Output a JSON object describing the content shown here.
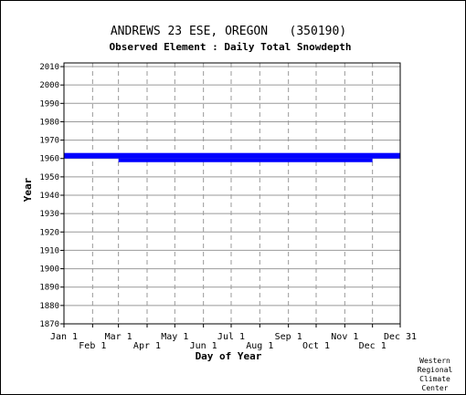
{
  "chart_data": {
    "type": "bar",
    "title": "ANDREWS 23 ESE, OREGON   (350190)",
    "subtitle": "Observed Element : Daily Total Snowdepth",
    "xlabel": "Day of Year",
    "ylabel": "Year",
    "ylim": [
      1870,
      2012
    ],
    "yticks": [
      1870,
      1880,
      1890,
      1900,
      1910,
      1920,
      1930,
      1940,
      1950,
      1960,
      1970,
      1980,
      1990,
      2000,
      2010
    ],
    "xlim": [
      "Jan 1",
      "Dec 31"
    ],
    "xticks_top": [
      "Jan 1",
      "Mar 1",
      "May 1",
      "Jul 1",
      "Sep 1",
      "Nov 1",
      "Dec 31"
    ],
    "xticks_bottom": [
      "Feb 1",
      "Apr 1",
      "Jun 1",
      "Aug 1",
      "Oct 1",
      "Dec 1"
    ],
    "grid": true,
    "bar_color": "#0000ff",
    "series": [
      {
        "values": [
          {
            "x_start": "Jan 1",
            "x_end": "Dec 31",
            "y_start": 1960,
            "y_end": 1963
          },
          {
            "x_start": "Mar 1",
            "x_end": "Dec 1",
            "y_start": 1958,
            "y_end": 1960
          }
        ]
      }
    ]
  },
  "credit": [
    "Western",
    "Regional",
    "Climate",
    "Center"
  ]
}
